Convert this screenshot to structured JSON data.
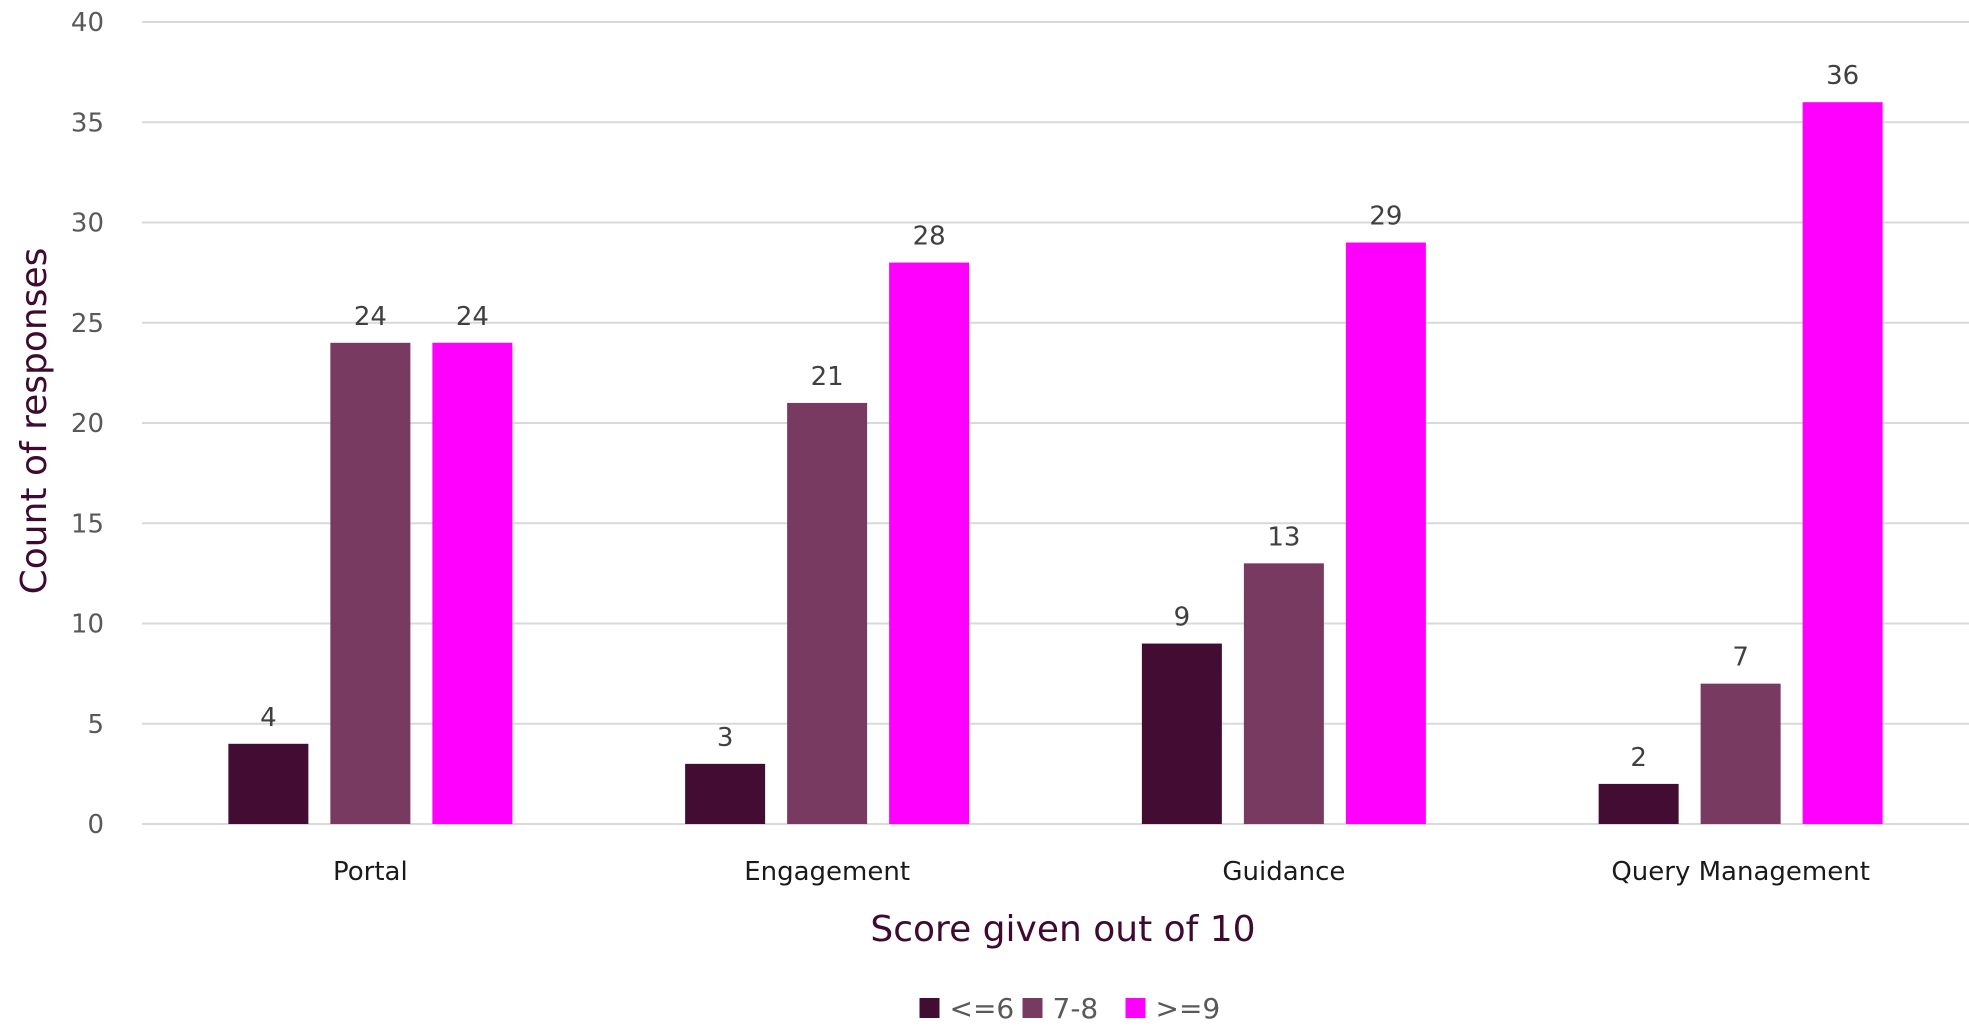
{
  "chart_data": {
    "type": "bar",
    "title": "",
    "xlabel": "Score given out of 10",
    "ylabel": "Count of responses",
    "categories": [
      "Portal",
      "Engagement",
      "Guidance",
      "Query Management"
    ],
    "series": [
      {
        "name": "<=6",
        "color": "#420c33",
        "values": [
          4,
          3,
          9,
          2
        ]
      },
      {
        "name": "7-8",
        "color": "#783a60",
        "values": [
          24,
          21,
          13,
          7
        ]
      },
      {
        "name": ">=9",
        "color": "#ff00ff",
        "values": [
          24,
          28,
          29,
          36
        ]
      }
    ],
    "ylim": [
      0,
      40
    ],
    "yticks": [
      "0",
      "5",
      "10",
      "15",
      "20",
      "25",
      "30",
      "35",
      "40"
    ],
    "grid": true,
    "legend_position": "bottom-center",
    "data_labels": true
  }
}
